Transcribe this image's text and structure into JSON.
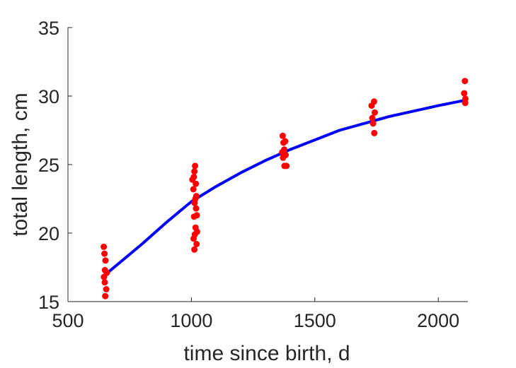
{
  "chart_data": {
    "type": "scatter",
    "xlabel": "time since birth, d",
    "ylabel": "total length, cm",
    "xlim": [
      500,
      2120
    ],
    "ylim": [
      15,
      35
    ],
    "xticks": [
      500,
      1000,
      1500,
      2000
    ],
    "yticks": [
      15,
      20,
      25,
      30,
      35
    ],
    "xtick_labels": [
      "500",
      "1000",
      "1500",
      "2000"
    ],
    "ytick_labels": [
      "15",
      "20",
      "25",
      "30",
      "35"
    ],
    "grid": false,
    "box": false,
    "series": [
      {
        "kind": "scatter",
        "color": "#ff0000",
        "points": [
          [
            645,
            19.0
          ],
          [
            648,
            18.5
          ],
          [
            652,
            18.0
          ],
          [
            650,
            17.3
          ],
          [
            657,
            17.1
          ],
          [
            646,
            16.8
          ],
          [
            649,
            16.4
          ],
          [
            655,
            15.9
          ],
          [
            651,
            15.4
          ],
          [
            1004,
            23.9
          ],
          [
            1012,
            24.5
          ],
          [
            1015,
            24.9
          ],
          [
            1010,
            24.1
          ],
          [
            1018,
            23.6
          ],
          [
            1008,
            23.2
          ],
          [
            1020,
            22.7
          ],
          [
            1016,
            22.5
          ],
          [
            1013,
            22.2
          ],
          [
            1019,
            21.8
          ],
          [
            1022,
            21.3
          ],
          [
            1011,
            21.2
          ],
          [
            1017,
            20.4
          ],
          [
            1023,
            20.1
          ],
          [
            1014,
            19.9
          ],
          [
            1009,
            19.6
          ],
          [
            1021,
            19.2
          ],
          [
            1012,
            18.8
          ],
          [
            1370,
            27.1
          ],
          [
            1373,
            26.6
          ],
          [
            1380,
            26.7
          ],
          [
            1376,
            26.1
          ],
          [
            1368,
            25.9
          ],
          [
            1382,
            25.7
          ],
          [
            1371,
            25.5
          ],
          [
            1377,
            24.9
          ],
          [
            1385,
            24.9
          ],
          [
            1730,
            29.3
          ],
          [
            1740,
            29.6
          ],
          [
            1743,
            28.8
          ],
          [
            1733,
            28.4
          ],
          [
            1736,
            28.0
          ],
          [
            1741,
            27.3
          ],
          [
            2108,
            31.1
          ],
          [
            2105,
            30.2
          ],
          [
            2110,
            29.8
          ],
          [
            2109,
            29.5
          ]
        ]
      },
      {
        "kind": "line",
        "color": "#0000ff",
        "x": [
          660,
          700,
          800,
          900,
          1000,
          1100,
          1200,
          1300,
          1400,
          1500,
          1600,
          1700,
          1800,
          1900,
          2000,
          2110
        ],
        "y": [
          17.1,
          17.7,
          19.2,
          20.8,
          22.3,
          23.4,
          24.4,
          25.3,
          26.1,
          26.8,
          27.5,
          28.0,
          28.5,
          28.9,
          29.3,
          29.7
        ]
      }
    ]
  }
}
